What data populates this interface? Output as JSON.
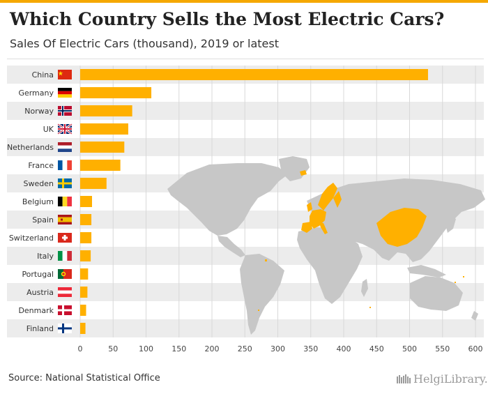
{
  "header": {
    "title": "Which Country Sells the Most Electric Cars?",
    "subtitle": "Sales Of Electric Cars (thousand), 2019 or latest"
  },
  "footer": {
    "source": "Source: National Statistical Office",
    "logo": "HelgiLibrary."
  },
  "colors": {
    "bar": "#ffb000",
    "band": "#ececec",
    "map": "#c7c7c7",
    "map_highlight": "#ffb000",
    "accent": "#f5a800"
  },
  "chart_data": {
    "type": "bar",
    "orientation": "horizontal",
    "title": "Which Country Sells the Most Electric Cars?",
    "subtitle": "Sales Of Electric Cars (thousand), 2019 or latest",
    "xlabel": "",
    "ylabel": "",
    "xlim": [
      0,
      600
    ],
    "xticks": [
      0,
      50,
      100,
      150,
      200,
      250,
      300,
      350,
      400,
      450,
      500,
      550,
      600
    ],
    "grid": true,
    "categories": [
      "China",
      "Germany",
      "Norway",
      "UK",
      "Netherlands",
      "France",
      "Sweden",
      "Belgium",
      "Spain",
      "Switzerland",
      "Italy",
      "Portugal",
      "Austria",
      "Denmark",
      "Finland"
    ],
    "values": [
      528,
      108,
      79,
      73,
      67,
      61,
      40,
      18,
      17,
      17,
      16,
      12,
      11,
      9,
      8
    ],
    "flag_icons": [
      "china-flag-icon",
      "germany-flag-icon",
      "norway-flag-icon",
      "uk-flag-icon",
      "netherlands-flag-icon",
      "france-flag-icon",
      "sweden-flag-icon",
      "belgium-flag-icon",
      "spain-flag-icon",
      "switzerland-flag-icon",
      "italy-flag-icon",
      "portugal-flag-icon",
      "austria-flag-icon",
      "denmark-flag-icon",
      "finland-flag-icon"
    ],
    "background": "world-map-icon with highlighted countries"
  }
}
